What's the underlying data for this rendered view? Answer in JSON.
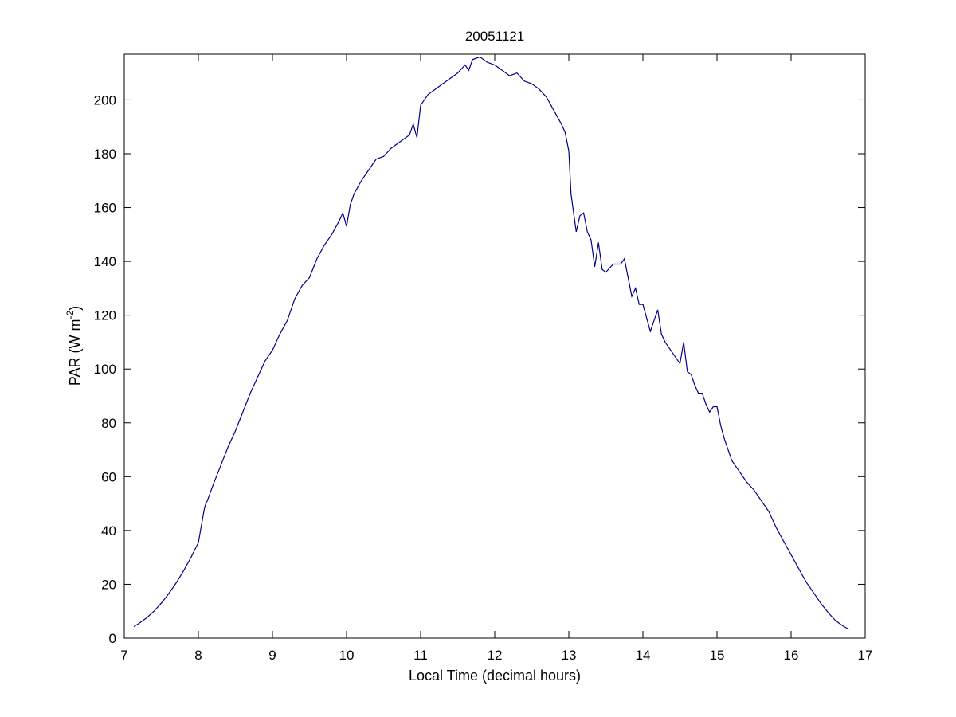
{
  "chart_data": {
    "type": "line",
    "title": "20051121",
    "x_label": "Local Time (decimal hours)",
    "y_label": [
      "PAR (W m",
      "-2",
      ")"
    ],
    "series": [
      {
        "color": "#00008b",
        "x": [
          7.13,
          7.2,
          7.3,
          7.4,
          7.5,
          7.6,
          7.7,
          7.8,
          7.9,
          8.0,
          8.08,
          8.1,
          8.12,
          8.2,
          8.3,
          8.4,
          8.5,
          8.6,
          8.7,
          8.8,
          8.9,
          9.0,
          9.1,
          9.2,
          9.25,
          9.3,
          9.4,
          9.5,
          9.6,
          9.7,
          9.8,
          9.9,
          9.95,
          10.0,
          10.05,
          10.1,
          10.2,
          10.3,
          10.4,
          10.5,
          10.6,
          10.7,
          10.8,
          10.85,
          10.9,
          10.95,
          11.0,
          11.1,
          11.2,
          11.3,
          11.4,
          11.5,
          11.6,
          11.65,
          11.7,
          11.8,
          11.9,
          12.0,
          12.1,
          12.2,
          12.3,
          12.4,
          12.5,
          12.6,
          12.7,
          12.8,
          12.9,
          12.95,
          13.0,
          13.03,
          13.07,
          13.1,
          13.15,
          13.2,
          13.25,
          13.3,
          13.35,
          13.4,
          13.45,
          13.5,
          13.6,
          13.7,
          13.75,
          13.8,
          13.85,
          13.9,
          13.95,
          14.0,
          14.05,
          14.1,
          14.15,
          14.2,
          14.25,
          14.3,
          14.35,
          14.4,
          14.45,
          14.5,
          14.55,
          14.6,
          14.65,
          14.7,
          14.75,
          14.8,
          14.85,
          14.9,
          14.95,
          15.0,
          15.05,
          15.1,
          15.2,
          15.3,
          15.4,
          15.5,
          15.6,
          15.7,
          15.8,
          15.9,
          16.0,
          16.1,
          16.2,
          16.3,
          16.4,
          16.5,
          16.6,
          16.7,
          16.78
        ],
        "values": [
          4.3,
          5.5,
          7.5,
          10,
          13,
          16.5,
          20.5,
          25,
          30,
          35.5,
          48,
          50,
          51,
          57,
          64,
          71,
          77,
          84,
          91,
          97,
          103,
          107,
          113,
          118,
          122,
          126,
          131,
          134,
          141,
          146,
          150,
          155,
          158,
          153,
          161,
          165,
          170,
          174,
          178,
          179,
          182,
          184,
          186,
          187,
          191,
          186,
          198,
          202,
          204,
          206,
          208,
          210,
          213,
          211,
          215,
          216,
          214,
          213,
          211,
          209,
          210,
          207,
          206,
          204,
          201,
          196,
          191,
          188,
          181,
          165,
          157,
          151,
          157,
          158,
          151,
          148,
          138,
          147,
          137,
          136,
          139,
          139,
          141,
          134,
          127,
          130,
          124,
          124,
          119,
          114,
          118,
          122,
          113,
          110,
          108,
          106,
          104,
          102,
          110,
          99,
          98,
          94,
          91,
          91,
          87,
          84,
          86,
          86,
          79,
          74,
          66,
          62,
          58,
          55,
          51,
          47,
          41,
          36,
          31,
          26,
          21,
          17,
          13,
          9.5,
          6.5,
          4.5,
          3.3
        ]
      }
    ],
    "xlim": [
      7,
      17
    ],
    "xticks": [
      7,
      8,
      9,
      10,
      11,
      12,
      13,
      14,
      15,
      16,
      17
    ],
    "ylim": [
      0,
      217
    ],
    "yticks": [
      0,
      20,
      40,
      60,
      80,
      100,
      120,
      140,
      160,
      180,
      200
    ]
  }
}
